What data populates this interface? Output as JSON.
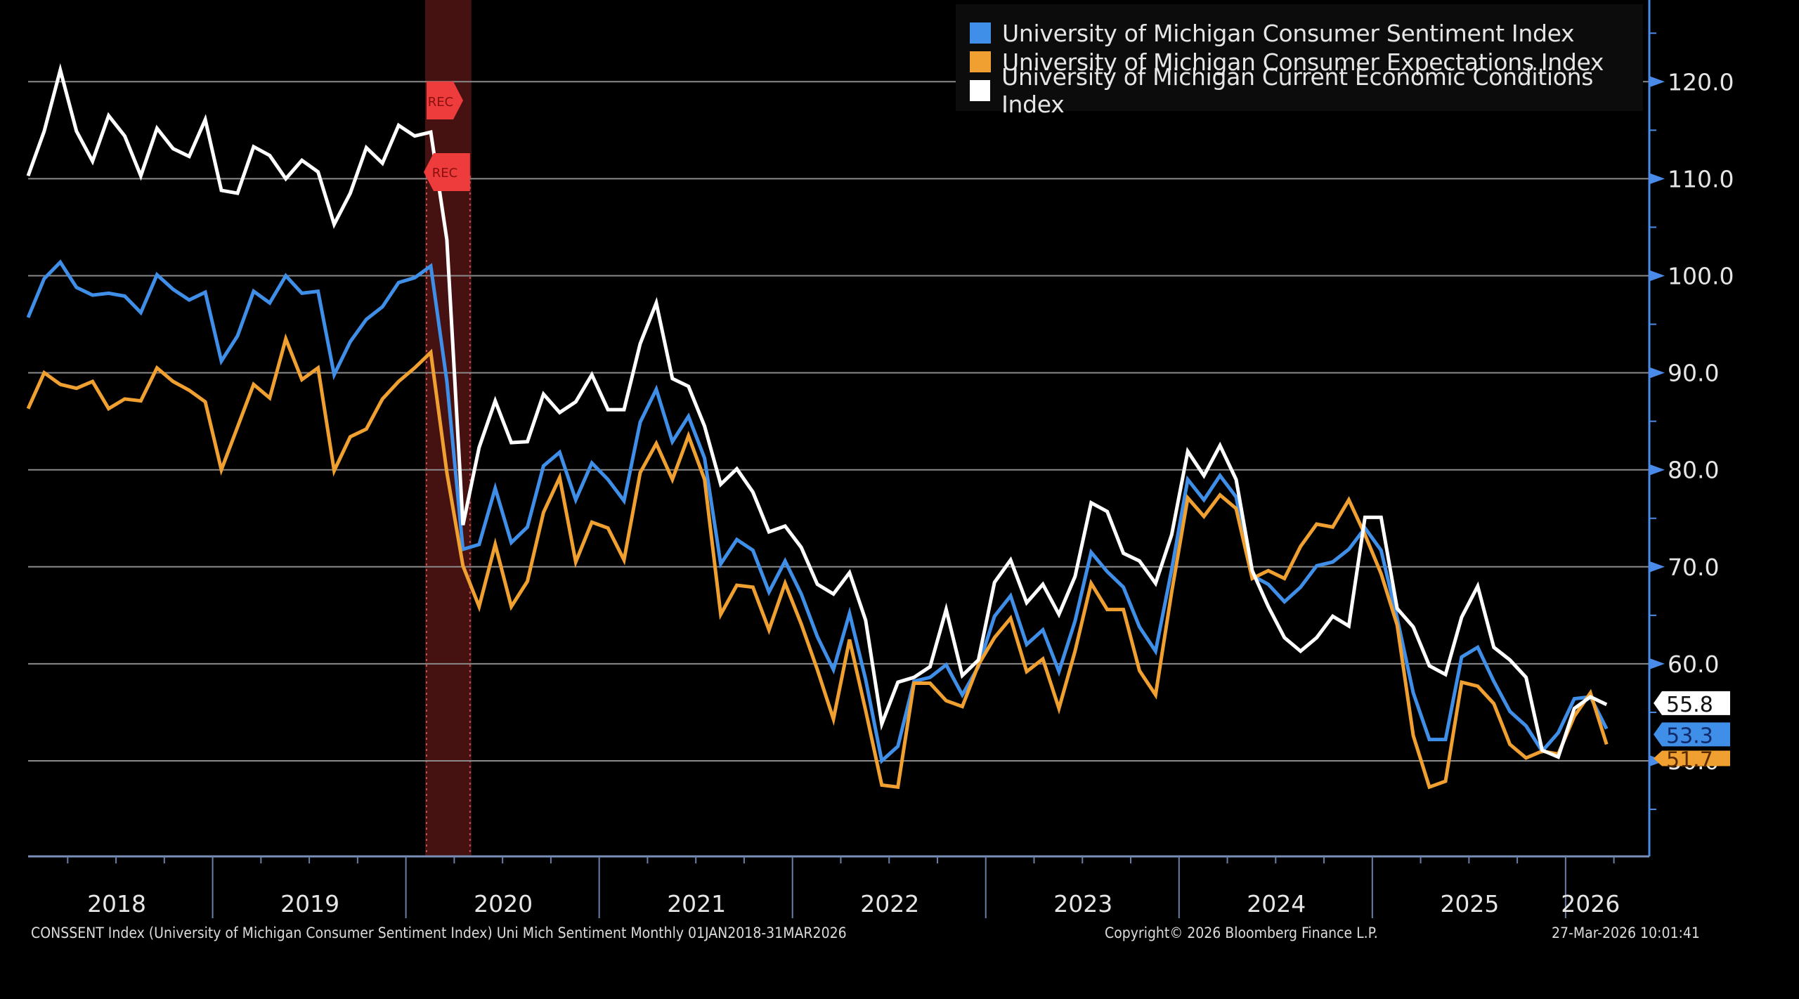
{
  "chart_data": {
    "type": "line",
    "title": "",
    "xlabel": "",
    "ylabel": "",
    "ylim": [
      40,
      127
    ],
    "y_ticks": [
      "50.0",
      "60.0",
      "70.0",
      "80.0",
      "90.0",
      "100.0",
      "110.0",
      "120.0"
    ],
    "y_tick_values": [
      50,
      60,
      70,
      80,
      90,
      100,
      110,
      120
    ],
    "y_axis_side": "right",
    "grid": true,
    "legend_position": "top-right",
    "x_start": "2018-01",
    "x_end": "2026-03",
    "frequency": "monthly",
    "x_year_labels": [
      "2018",
      "2019",
      "2020",
      "2021",
      "2022",
      "2023",
      "2024",
      "2025",
      "2026"
    ],
    "recession": {
      "start": "2020-02",
      "end": "2020-04",
      "label": "REC"
    },
    "series": [
      {
        "name": "University of Michigan Consumer Sentiment Index",
        "color": "#3f8fe8",
        "last_value_label": "53.3",
        "values": [
          95.7,
          99.7,
          101.4,
          98.8,
          98.0,
          98.2,
          97.9,
          96.2,
          100.1,
          98.6,
          97.5,
          98.3,
          91.2,
          93.8,
          98.4,
          97.2,
          100.0,
          98.2,
          98.4,
          89.8,
          93.2,
          95.5,
          96.8,
          99.3,
          99.8,
          101.0,
          89.1,
          71.8,
          72.3,
          78.1,
          72.5,
          74.1,
          80.4,
          81.8,
          76.9,
          80.7,
          79.0,
          76.8,
          84.9,
          88.3,
          82.9,
          85.5,
          81.2,
          70.3,
          72.8,
          71.7,
          67.4,
          70.6,
          67.2,
          62.8,
          59.4,
          65.2,
          58.4,
          50.0,
          51.5,
          58.2,
          58.6,
          59.9,
          56.8,
          59.7,
          64.9,
          67.0,
          62.0,
          63.5,
          59.2,
          64.4,
          71.5,
          69.5,
          67.9,
          63.8,
          61.3,
          69.7,
          79.0,
          76.9,
          79.4,
          77.2,
          69.1,
          68.2,
          66.4,
          67.9,
          70.1,
          70.5,
          71.8,
          74.0,
          71.7,
          64.7,
          57.0,
          52.2,
          52.2,
          60.7,
          61.7,
          58.2,
          55.1,
          53.6,
          51.0,
          52.9,
          56.4,
          56.6,
          53.3
        ]
      },
      {
        "name": "University of Michigan Consumer Expectations Index",
        "color": "#f0a030",
        "last_value_label": "51.7",
        "values": [
          86.3,
          90.0,
          88.8,
          88.4,
          89.1,
          86.3,
          87.3,
          87.1,
          90.5,
          89.1,
          88.2,
          87.0,
          80.0,
          84.4,
          88.8,
          87.4,
          93.5,
          89.3,
          90.5,
          79.9,
          83.4,
          84.2,
          87.3,
          89.1,
          90.5,
          92.1,
          79.7,
          70.1,
          65.9,
          72.3,
          65.9,
          68.5,
          75.6,
          79.2,
          70.5,
          74.6,
          74.0,
          70.7,
          79.7,
          82.7,
          79.0,
          83.5,
          79.0,
          65.1,
          68.1,
          67.9,
          63.5,
          68.3,
          64.1,
          59.4,
          54.3,
          62.5,
          55.2,
          47.5,
          47.3,
          58.0,
          58.0,
          56.2,
          55.6,
          59.9,
          62.7,
          64.7,
          59.2,
          60.5,
          55.4,
          61.3,
          68.3,
          65.6,
          65.6,
          59.3,
          56.8,
          67.4,
          77.1,
          75.2,
          77.4,
          76.0,
          68.8,
          69.6,
          68.8,
          72.1,
          74.4,
          74.1,
          76.9,
          73.3,
          69.3,
          64.0,
          52.6,
          47.3,
          47.9,
          58.1,
          57.7,
          55.9,
          51.7,
          50.3,
          51.0,
          50.7,
          54.6,
          57.0,
          51.7
        ]
      },
      {
        "name": "University of Michigan Current Economic Conditions Index",
        "color": "#ffffff",
        "last_value_label": "55.8",
        "values": [
          110.3,
          114.9,
          121.2,
          114.9,
          111.8,
          116.5,
          114.4,
          110.3,
          115.2,
          113.1,
          112.3,
          116.1,
          108.8,
          108.5,
          113.3,
          112.4,
          110.0,
          111.9,
          110.7,
          105.3,
          108.5,
          113.2,
          111.6,
          115.5,
          114.4,
          114.8,
          103.7,
          74.3,
          82.3,
          87.1,
          82.8,
          82.9,
          87.8,
          85.9,
          87.0,
          89.8,
          86.2,
          86.2,
          93.0,
          97.2,
          89.4,
          88.6,
          84.5,
          78.5,
          80.1,
          77.7,
          73.6,
          74.2,
          72.0,
          68.2,
          67.2,
          69.4,
          64.5,
          53.8,
          58.1,
          58.6,
          59.7,
          65.6,
          58.8,
          60.4,
          68.4,
          70.7,
          66.3,
          68.2,
          65.1,
          69.0,
          76.6,
          75.7,
          71.4,
          70.6,
          68.3,
          73.3,
          81.9,
          79.4,
          82.5,
          79.0,
          69.6,
          65.9,
          62.7,
          61.3,
          62.7,
          64.9,
          63.9,
          75.1,
          75.1,
          65.7,
          63.8,
          59.8,
          58.9,
          64.8,
          68.0,
          61.7,
          60.4,
          58.6,
          51.1,
          50.4,
          55.4,
          56.6,
          55.8
        ]
      }
    ]
  },
  "footer": {
    "source": "CONSSENT Index (University of Michigan Consumer Sentiment Index) Uni Mich Sentiment Monthly 01JAN2018-31MAR2026",
    "copyright": "Copyright© 2026 Bloomberg Finance L.P.",
    "timestamp": "27-Mar-2026 10:01:41"
  }
}
